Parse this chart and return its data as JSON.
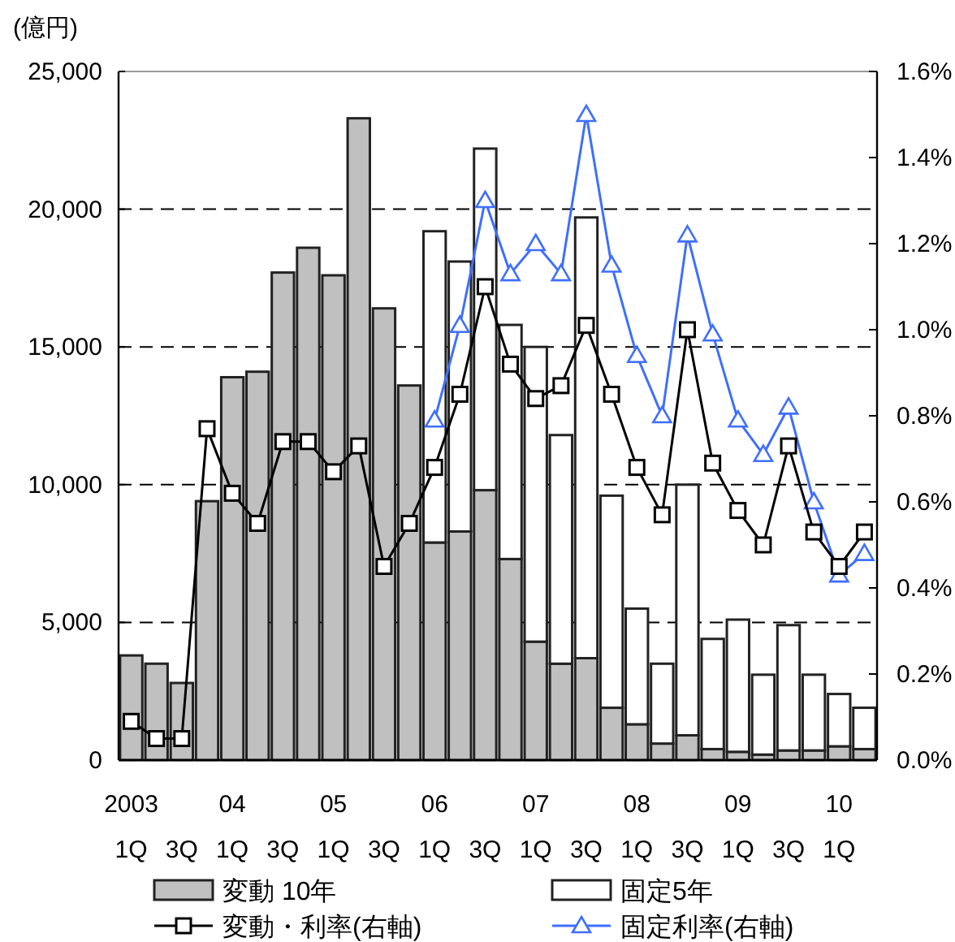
{
  "chart_data": {
    "type": "bar",
    "stacked": true,
    "ylabel": "(億円)",
    "categories": [
      "2003\n1Q",
      null,
      "\n3Q",
      null,
      "04\n1Q",
      null,
      "\n3Q",
      null,
      "05\n1Q",
      null,
      "\n3Q",
      null,
      "06\n1Q",
      null,
      "\n3Q",
      null,
      "07\n1Q",
      null,
      "\n3Q",
      null,
      "08\n1Q",
      null,
      "\n3Q",
      null,
      "09\n1Q",
      null,
      "\n3Q",
      null,
      "10\n1Q",
      null
    ],
    "series": [
      {
        "name": "変動 10年",
        "color": "#c0c0c0",
        "values": [
          3800,
          3500,
          2800,
          9400,
          13900,
          14100,
          17700,
          18600,
          17600,
          23300,
          16400,
          13600,
          7900,
          8300,
          9800,
          7300,
          4300,
          3500,
          3700,
          1900,
          1300,
          600,
          900,
          400,
          300,
          200,
          350,
          350,
          500,
          400
        ]
      },
      {
        "name": "固定5年",
        "color": "#ffffff",
        "values": [
          null,
          null,
          null,
          null,
          null,
          null,
          null,
          null,
          null,
          null,
          null,
          null,
          11300,
          9800,
          12400,
          8500,
          10700,
          8300,
          16000,
          7700,
          4200,
          2900,
          9100,
          4000,
          4800,
          2900,
          4550,
          2750,
          1900,
          1500
        ]
      },
      {
        "name": "変動・利率(右軸)",
        "type": "line",
        "axis": "y2",
        "color": "#000000",
        "marker": "square",
        "values": [
          0.09,
          0.05,
          0.05,
          0.77,
          0.62,
          0.55,
          0.74,
          0.74,
          0.67,
          0.73,
          0.45,
          0.55,
          0.68,
          0.85,
          1.1,
          0.92,
          0.84,
          0.87,
          1.01,
          0.85,
          0.68,
          0.57,
          1.0,
          0.69,
          0.58,
          0.5,
          0.73,
          0.53,
          0.45,
          0.53
        ]
      },
      {
        "name": "固定利率(右軸)",
        "type": "line",
        "axis": "y2",
        "color": "#3f6fff",
        "marker": "triangle",
        "values": [
          null,
          null,
          null,
          null,
          null,
          null,
          null,
          null,
          null,
          null,
          null,
          null,
          0.79,
          1.01,
          1.3,
          1.13,
          1.2,
          1.13,
          1.5,
          1.15,
          0.94,
          0.8,
          1.22,
          0.99,
          0.79,
          0.71,
          0.82,
          0.6,
          0.43,
          0.48
        ]
      }
    ],
    "ylim": [
      0,
      25000
    ],
    "yticks": [
      {
        "value": 0,
        "label": "0"
      },
      {
        "value": 5000,
        "label": "5,000"
      },
      {
        "value": 10000,
        "label": "10,000"
      },
      {
        "value": 15000,
        "label": "15,000"
      },
      {
        "value": 20000,
        "label": "20,000"
      },
      {
        "value": 25000,
        "label": "25,000"
      }
    ],
    "y2lim": [
      0,
      1.6
    ],
    "y2ticks": [
      {
        "value": 0,
        "label": "0.0%"
      },
      {
        "value": 0.2,
        "label": "0.2%"
      },
      {
        "value": 0.4,
        "label": "0.4%"
      },
      {
        "value": 0.6,
        "label": "0.6%"
      },
      {
        "value": 0.8,
        "label": "0.8%"
      },
      {
        "value": 1.0,
        "label": "1.0%"
      },
      {
        "value": 1.2,
        "label": "1.2%"
      },
      {
        "value": 1.4,
        "label": "1.4%"
      },
      {
        "value": 1.6,
        "label": "1.6%"
      }
    ],
    "grid": "y",
    "legend": "bottom"
  }
}
